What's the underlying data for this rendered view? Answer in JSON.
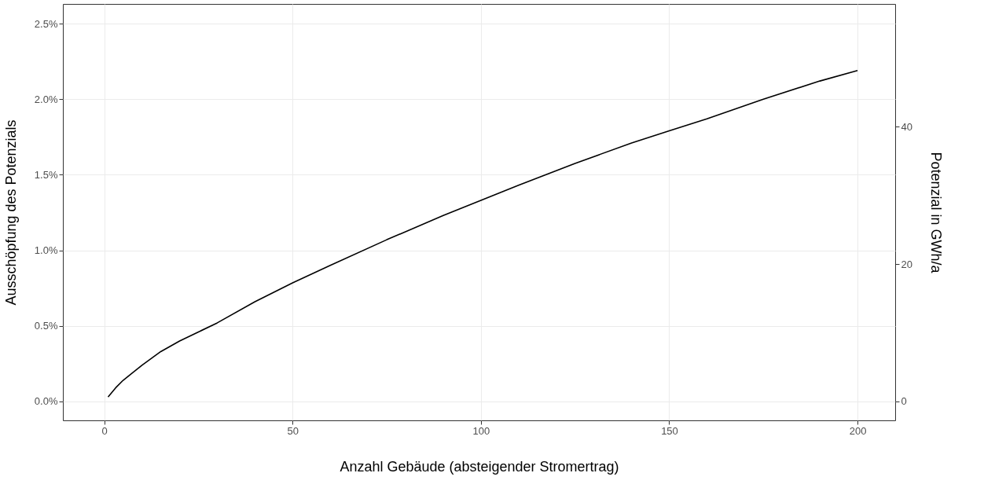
{
  "chart_data": {
    "type": "line",
    "xlabel": "Anzahl Gebäude (absteigender Stromertrag)",
    "ylabel": "Ausschöpfung des Potenzials",
    "y2label": "Potenzial in GWh/a",
    "x": [
      1,
      2,
      3,
      5,
      7,
      10,
      15,
      20,
      25,
      30,
      40,
      50,
      60,
      75,
      90,
      100,
      110,
      125,
      140,
      150,
      160,
      175,
      190,
      200
    ],
    "series": [
      {
        "color": "#000000",
        "values": [
          0.03,
          0.06,
          0.09,
          0.14,
          0.18,
          0.24,
          0.33,
          0.4,
          0.46,
          0.52,
          0.66,
          0.785,
          0.9,
          1.07,
          1.23,
          1.33,
          1.43,
          1.575,
          1.71,
          1.79,
          1.87,
          2.0,
          2.12,
          2.19
        ]
      }
    ],
    "xlim": [
      -11,
      210
    ],
    "xticks": [
      0,
      50,
      100,
      150,
      200
    ],
    "ylim": [
      -0.125,
      2.63
    ],
    "yticks": [
      {
        "value": 0,
        "label": "0.0%"
      },
      {
        "value": 0.5,
        "label": "0.5%"
      },
      {
        "value": 1,
        "label": "1.0%"
      },
      {
        "value": 1.5,
        "label": "1.5%"
      },
      {
        "value": 2,
        "label": "2.0%"
      },
      {
        "value": 2.5,
        "label": "2.5%"
      }
    ],
    "y2lim": [
      -2.75,
      57.9
    ],
    "y2ticks": [
      0,
      20,
      40
    ],
    "grid": true,
    "marker": "none",
    "line_style": "solid"
  }
}
